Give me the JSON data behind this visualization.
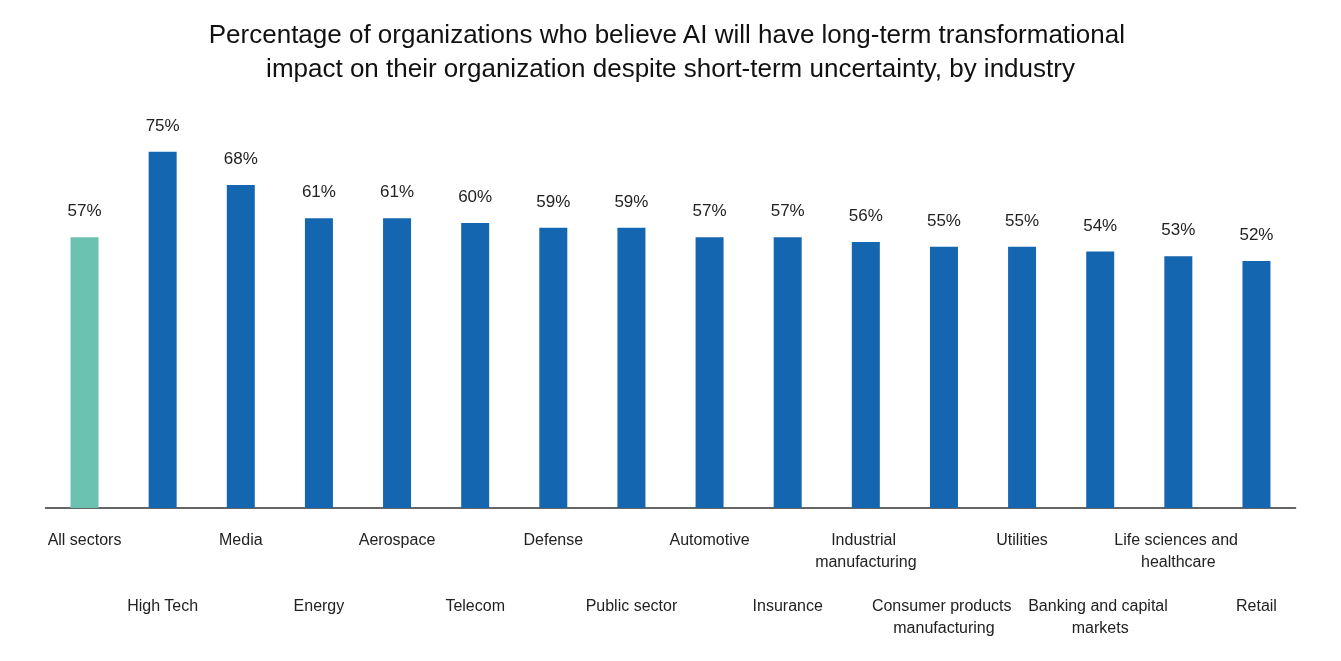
{
  "chart_data": {
    "type": "bar",
    "title": "Percentage of organizations who believe AI will have long-term transformational impact on their organization despite short-term uncertainty, by industry",
    "categories": [
      "All sectors",
      "High Tech",
      "Media",
      "Energy",
      "Aerospace",
      "Telecom",
      "Defense",
      "Public sector",
      "Automotive",
      "Insurance",
      "Industrial manufacturing",
      "Consumer products manufacturing",
      "Utilities",
      "Banking and capital markets",
      "Life sciences and healthcare",
      "Retail"
    ],
    "values": [
      57,
      75,
      68,
      61,
      61,
      60,
      59,
      59,
      57,
      57,
      56,
      55,
      55,
      54,
      53,
      52
    ],
    "value_labels": [
      "57%",
      "75%",
      "68%",
      "61%",
      "61%",
      "60%",
      "59%",
      "59%",
      "57%",
      "57%",
      "56%",
      "55%",
      "55%",
      "54%",
      "53%",
      "52%"
    ],
    "colors": [
      "#6cc1b1",
      "#1466b0",
      "#1466b0",
      "#1466b0",
      "#1466b0",
      "#1466b0",
      "#1466b0",
      "#1466b0",
      "#1466b0",
      "#1466b0",
      "#1466b0",
      "#1466b0",
      "#1466b0",
      "#1466b0",
      "#1466b0",
      "#1466b0"
    ]
  }
}
